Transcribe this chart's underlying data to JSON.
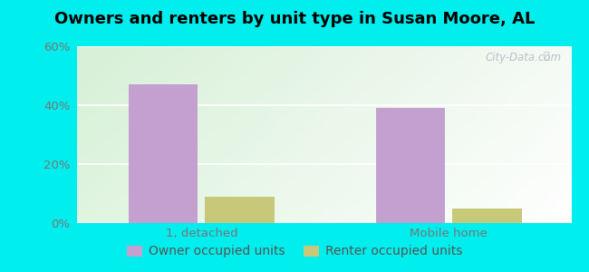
{
  "title": "Owners and renters by unit type in Susan Moore, AL",
  "categories": [
    "1, detached",
    "Mobile home"
  ],
  "owner_values": [
    47,
    39
  ],
  "renter_values": [
    9,
    5
  ],
  "owner_color": "#c4a0d0",
  "renter_color": "#c8c87a",
  "ylim": [
    0,
    60
  ],
  "yticks": [
    0,
    20,
    40,
    60
  ],
  "ytick_labels": [
    "0%",
    "20%",
    "40%",
    "60%"
  ],
  "background_outer": "#00eeee",
  "bar_width": 0.28,
  "title_fontsize": 13,
  "tick_fontsize": 9.5,
  "legend_fontsize": 10,
  "watermark": "City-Data.com",
  "grid_color": "#dddddd",
  "x_positions": [
    0.35,
    1.35
  ]
}
